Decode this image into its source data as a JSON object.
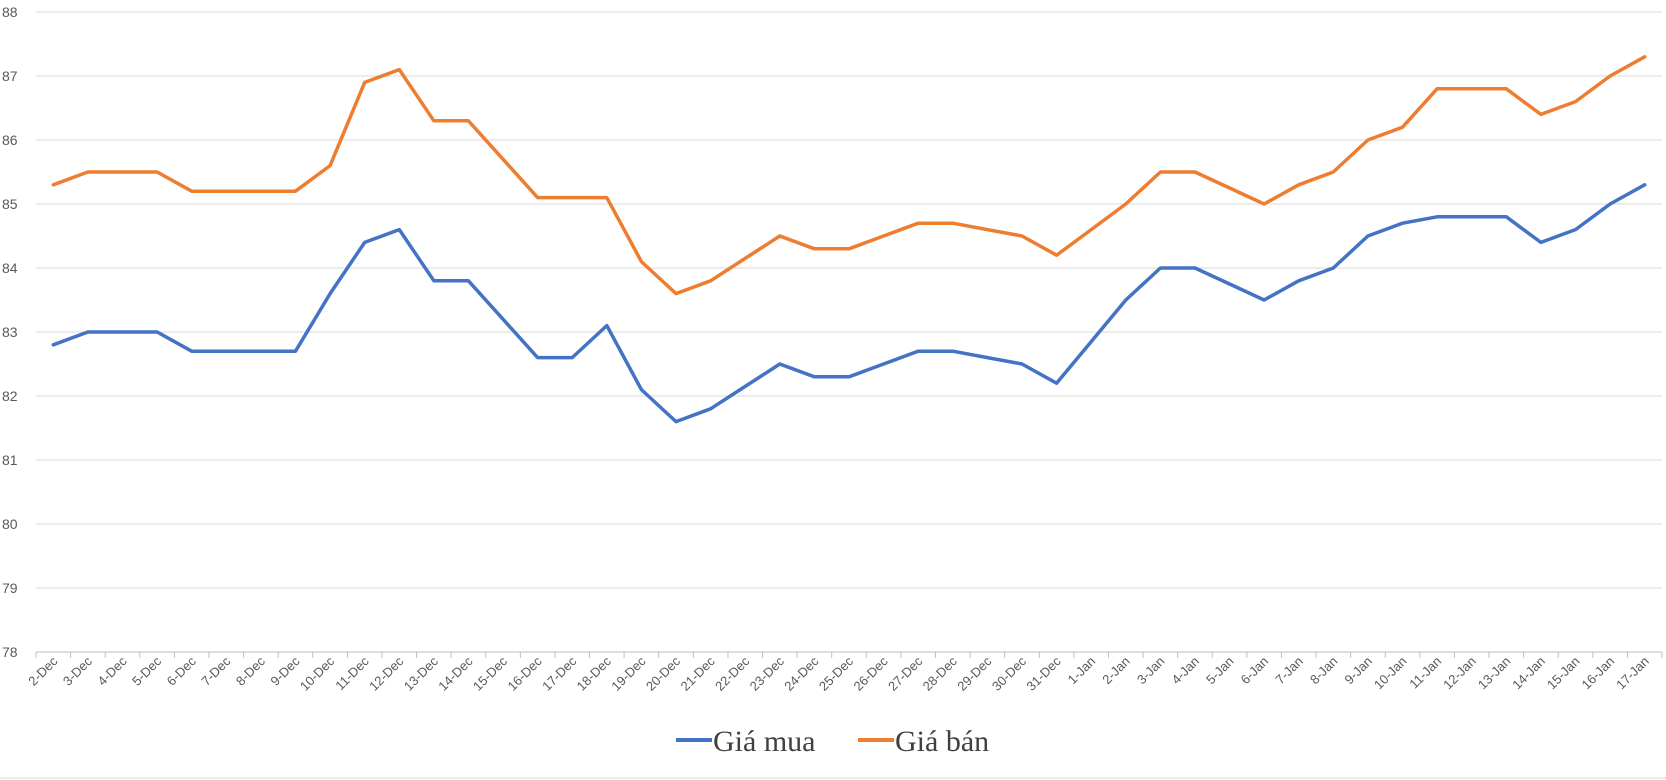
{
  "chart_data": {
    "type": "line",
    "x": [
      "2-Dec",
      "3-Dec",
      "4-Dec",
      "5-Dec",
      "6-Dec",
      "7-Dec",
      "8-Dec",
      "9-Dec",
      "10-Dec",
      "11-Dec",
      "12-Dec",
      "13-Dec",
      "14-Dec",
      "15-Dec",
      "16-Dec",
      "17-Dec",
      "18-Dec",
      "19-Dec",
      "20-Dec",
      "21-Dec",
      "22-Dec",
      "23-Dec",
      "24-Dec",
      "25-Dec",
      "26-Dec",
      "27-Dec",
      "28-Dec",
      "29-Dec",
      "30-Dec",
      "31-Dec",
      "1-Jan",
      "2-Jan",
      "3-Jan",
      "4-Jan",
      "5-Jan",
      "6-Jan",
      "7-Jan",
      "8-Jan",
      "9-Jan",
      "10-Jan",
      "11-Jan",
      "12-Jan",
      "13-Jan",
      "14-Jan",
      "15-Jan",
      "16-Jan",
      "17-Jan"
    ],
    "series": [
      {
        "name": "Giá mua",
        "color": "#4472C4",
        "values": [
          82.8,
          83.0,
          83.0,
          83.0,
          82.7,
          82.7,
          82.7,
          82.7,
          83.6,
          84.4,
          84.6,
          83.8,
          83.8,
          83.2,
          82.6,
          82.6,
          83.1,
          82.1,
          81.6,
          81.8,
          82.15,
          82.5,
          82.3,
          82.3,
          82.5,
          82.7,
          82.7,
          82.6,
          82.5,
          82.2,
          82.85,
          83.5,
          84.0,
          84.0,
          83.75,
          83.5,
          83.8,
          84.0,
          84.5,
          84.7,
          84.8,
          84.8,
          84.8,
          84.4,
          84.6,
          85.0,
          85.3
        ]
      },
      {
        "name": "Giá bán",
        "color": "#ED7D31",
        "values": [
          85.3,
          85.5,
          85.5,
          85.5,
          85.2,
          85.2,
          85.2,
          85.2,
          85.6,
          86.9,
          87.1,
          86.3,
          86.3,
          85.7,
          85.1,
          85.1,
          85.1,
          84.1,
          83.6,
          83.8,
          84.15,
          84.5,
          84.3,
          84.3,
          84.5,
          84.7,
          84.7,
          84.6,
          84.5,
          84.2,
          84.6,
          85.0,
          85.5,
          85.5,
          85.25,
          85.0,
          85.3,
          85.5,
          86.0,
          86.2,
          86.8,
          86.8,
          86.8,
          86.4,
          86.6,
          87.0,
          87.3
        ]
      }
    ],
    "yticks": [
      "78",
      "79",
      "80",
      "81",
      "82",
      "83",
      "84",
      "85",
      "86",
      "87",
      "88"
    ],
    "ylim": [
      78,
      88
    ],
    "grid": true,
    "legend": "bottom-center"
  }
}
